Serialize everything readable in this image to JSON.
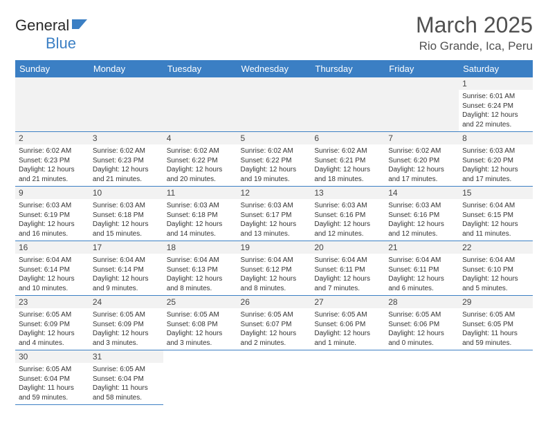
{
  "logo": {
    "text1": "General",
    "text2": "Blue"
  },
  "title": "March 2025",
  "location": "Rio Grande, Ica, Peru",
  "colors": {
    "header": "#3b7fc4",
    "border": "#3b7fc4",
    "shade": "#f2f2f2",
    "text": "#333",
    "title": "#505050"
  },
  "weekdays": [
    "Sunday",
    "Monday",
    "Tuesday",
    "Wednesday",
    "Thursday",
    "Friday",
    "Saturday"
  ],
  "weeks": [
    [
      null,
      null,
      null,
      null,
      null,
      null,
      {
        "n": "1",
        "sr": "6:01 AM",
        "ss": "6:24 PM",
        "dl": "12 hours and 22 minutes."
      }
    ],
    [
      {
        "n": "2",
        "sr": "6:02 AM",
        "ss": "6:23 PM",
        "dl": "12 hours and 21 minutes."
      },
      {
        "n": "3",
        "sr": "6:02 AM",
        "ss": "6:23 PM",
        "dl": "12 hours and 21 minutes."
      },
      {
        "n": "4",
        "sr": "6:02 AM",
        "ss": "6:22 PM",
        "dl": "12 hours and 20 minutes."
      },
      {
        "n": "5",
        "sr": "6:02 AM",
        "ss": "6:22 PM",
        "dl": "12 hours and 19 minutes."
      },
      {
        "n": "6",
        "sr": "6:02 AM",
        "ss": "6:21 PM",
        "dl": "12 hours and 18 minutes."
      },
      {
        "n": "7",
        "sr": "6:02 AM",
        "ss": "6:20 PM",
        "dl": "12 hours and 17 minutes."
      },
      {
        "n": "8",
        "sr": "6:03 AM",
        "ss": "6:20 PM",
        "dl": "12 hours and 17 minutes."
      }
    ],
    [
      {
        "n": "9",
        "sr": "6:03 AM",
        "ss": "6:19 PM",
        "dl": "12 hours and 16 minutes."
      },
      {
        "n": "10",
        "sr": "6:03 AM",
        "ss": "6:18 PM",
        "dl": "12 hours and 15 minutes."
      },
      {
        "n": "11",
        "sr": "6:03 AM",
        "ss": "6:18 PM",
        "dl": "12 hours and 14 minutes."
      },
      {
        "n": "12",
        "sr": "6:03 AM",
        "ss": "6:17 PM",
        "dl": "12 hours and 13 minutes."
      },
      {
        "n": "13",
        "sr": "6:03 AM",
        "ss": "6:16 PM",
        "dl": "12 hours and 12 minutes."
      },
      {
        "n": "14",
        "sr": "6:03 AM",
        "ss": "6:16 PM",
        "dl": "12 hours and 12 minutes."
      },
      {
        "n": "15",
        "sr": "6:04 AM",
        "ss": "6:15 PM",
        "dl": "12 hours and 11 minutes."
      }
    ],
    [
      {
        "n": "16",
        "sr": "6:04 AM",
        "ss": "6:14 PM",
        "dl": "12 hours and 10 minutes."
      },
      {
        "n": "17",
        "sr": "6:04 AM",
        "ss": "6:14 PM",
        "dl": "12 hours and 9 minutes."
      },
      {
        "n": "18",
        "sr": "6:04 AM",
        "ss": "6:13 PM",
        "dl": "12 hours and 8 minutes."
      },
      {
        "n": "19",
        "sr": "6:04 AM",
        "ss": "6:12 PM",
        "dl": "12 hours and 8 minutes."
      },
      {
        "n": "20",
        "sr": "6:04 AM",
        "ss": "6:11 PM",
        "dl": "12 hours and 7 minutes."
      },
      {
        "n": "21",
        "sr": "6:04 AM",
        "ss": "6:11 PM",
        "dl": "12 hours and 6 minutes."
      },
      {
        "n": "22",
        "sr": "6:04 AM",
        "ss": "6:10 PM",
        "dl": "12 hours and 5 minutes."
      }
    ],
    [
      {
        "n": "23",
        "sr": "6:05 AM",
        "ss": "6:09 PM",
        "dl": "12 hours and 4 minutes."
      },
      {
        "n": "24",
        "sr": "6:05 AM",
        "ss": "6:09 PM",
        "dl": "12 hours and 3 minutes."
      },
      {
        "n": "25",
        "sr": "6:05 AM",
        "ss": "6:08 PM",
        "dl": "12 hours and 3 minutes."
      },
      {
        "n": "26",
        "sr": "6:05 AM",
        "ss": "6:07 PM",
        "dl": "12 hours and 2 minutes."
      },
      {
        "n": "27",
        "sr": "6:05 AM",
        "ss": "6:06 PM",
        "dl": "12 hours and 1 minute."
      },
      {
        "n": "28",
        "sr": "6:05 AM",
        "ss": "6:06 PM",
        "dl": "12 hours and 0 minutes."
      },
      {
        "n": "29",
        "sr": "6:05 AM",
        "ss": "6:05 PM",
        "dl": "11 hours and 59 minutes."
      }
    ],
    [
      {
        "n": "30",
        "sr": "6:05 AM",
        "ss": "6:04 PM",
        "dl": "11 hours and 59 minutes."
      },
      {
        "n": "31",
        "sr": "6:05 AM",
        "ss": "6:04 PM",
        "dl": "11 hours and 58 minutes."
      },
      null,
      null,
      null,
      null,
      null
    ]
  ],
  "labels": {
    "sunrise": "Sunrise:",
    "sunset": "Sunset:",
    "daylight": "Daylight:"
  }
}
